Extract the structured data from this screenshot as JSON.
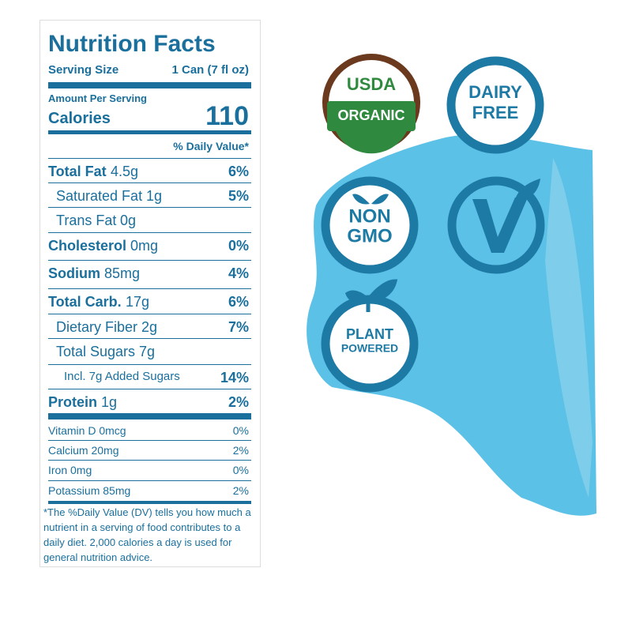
{
  "nutrition_facts": {
    "title": "Nutrition Facts",
    "serving_size": {
      "label": "Serving Size",
      "value": "1 Can (7 fl oz)"
    },
    "amount_per_serving": "Amount Per Serving",
    "calories": {
      "label": "Calories",
      "value": "110"
    },
    "daily_value_header": "% Daily Value*",
    "nutrients": [
      {
        "name": "Total Fat",
        "amount": "4.5g",
        "dv": "6%"
      },
      {
        "name": "Saturated Fat",
        "amount": "1g",
        "dv": "5%"
      },
      {
        "name": "Trans Fat",
        "amount": "0g"
      },
      {
        "name": "Cholesterol",
        "amount": "0mg",
        "dv": "0%"
      },
      {
        "name": "Sodium",
        "amount": "85mg",
        "dv": "4%"
      },
      {
        "name": "Total Carb.",
        "amount": "17g",
        "dv": "6%"
      },
      {
        "name": "Dietary Fiber",
        "amount": "2g",
        "dv": "7%"
      },
      {
        "name": "Total Sugars",
        "amount": "7g"
      },
      {
        "name": "Incl. 7g Added Sugars",
        "dv": "14%"
      },
      {
        "name": "Protein",
        "amount": "1g",
        "dv": "2%"
      }
    ],
    "vitamins": [
      {
        "name": "Vitamin D 0mcg",
        "dv": "0%"
      },
      {
        "name": "Calcium 20mg",
        "dv": "2%"
      },
      {
        "name": "Iron 0mg",
        "dv": "0%"
      },
      {
        "name": "Potassium 85mg",
        "dv": "2%"
      }
    ],
    "footnote": "*The %Daily Value (DV) tells you how much a nutrient in a serving of food contributes to a daily diet. 2,000 calories a day is used for general nutrition advice."
  },
  "badges": [
    {
      "lines": [
        "USDA",
        "ORGANIC"
      ]
    },
    {
      "lines": [
        "DAIRY",
        "FREE"
      ]
    },
    {
      "lines": [
        "NON",
        "GMO"
      ]
    },
    {
      "lines": [
        "PLANT",
        "POWERED"
      ]
    }
  ]
}
